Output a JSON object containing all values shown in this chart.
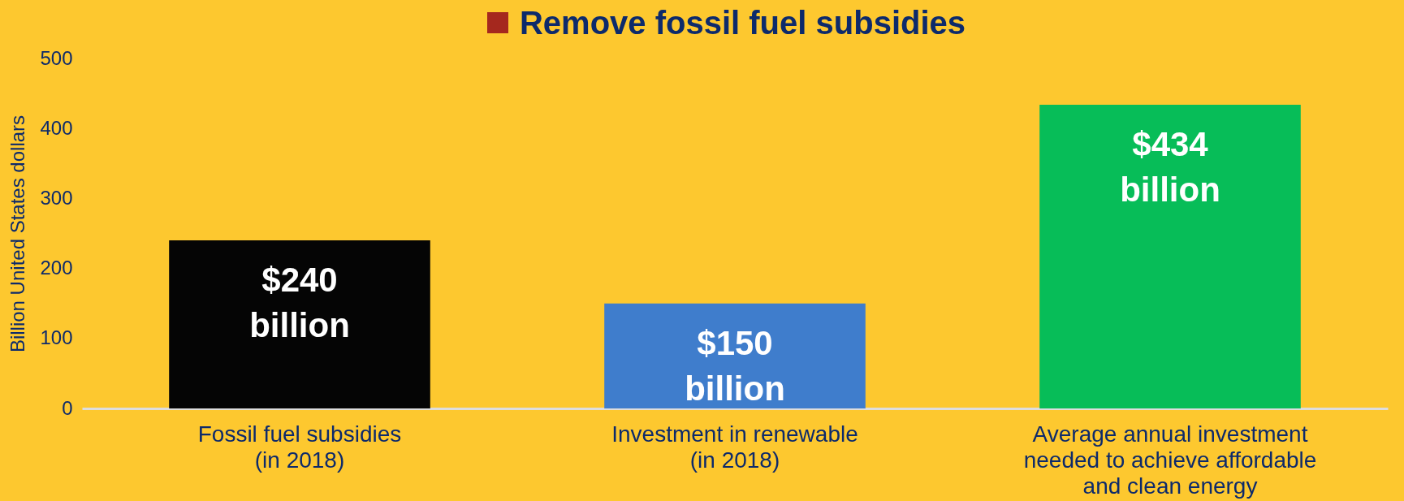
{
  "chart_data": {
    "type": "bar",
    "title": "Remove fossil fuel subsidies",
    "ylabel": "Billion United States dollars",
    "categories": [
      "Fossil fuel subsidies (in 2018)",
      "Investment in renewable (in 2018)",
      "Average annual investment needed to achieve affordable and clean energy"
    ],
    "values": [
      240,
      150,
      434
    ],
    "colors": [
      "#050505",
      "#3f7dcc",
      "#07bd58"
    ],
    "value_labels": [
      "$240 billion",
      "$150 billion",
      "$434 billion"
    ],
    "ylim": [
      0,
      500
    ],
    "yticks": [
      0,
      100,
      200,
      300,
      400,
      500
    ],
    "grid": false
  }
}
